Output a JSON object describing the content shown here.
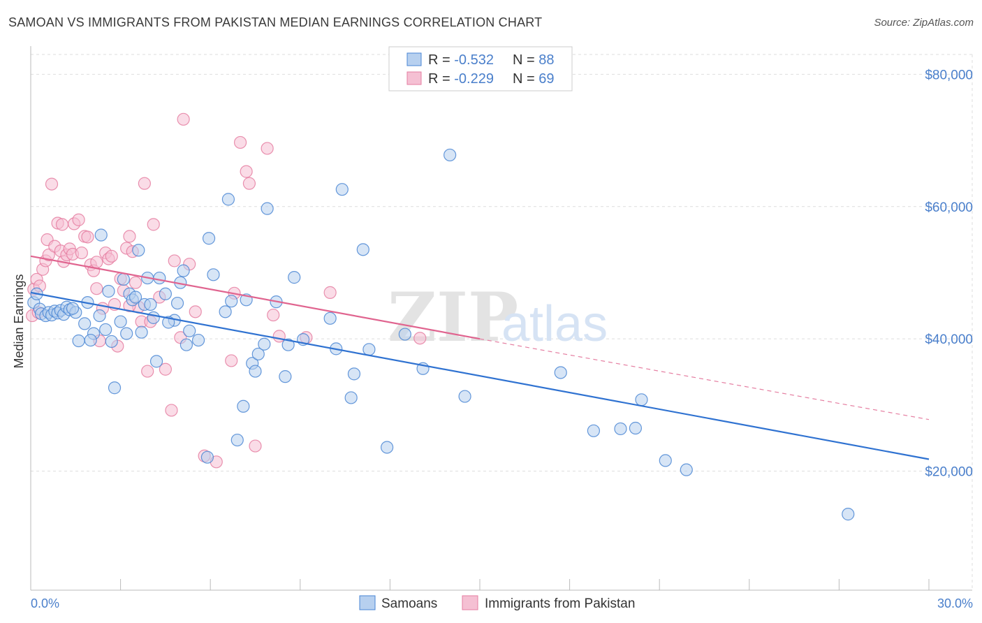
{
  "title": "SAMOAN VS IMMIGRANTS FROM PAKISTAN MEDIAN EARNINGS CORRELATION CHART",
  "source": "Source: ZipAtlas.com",
  "watermark": {
    "zip": "ZIP",
    "atlas": "atlas"
  },
  "colors": {
    "samoans": "#4a86d4",
    "samoans_fill": "#b7d0ef",
    "pakistan": "#e57ea1",
    "pakistan_fill": "#f5c0d3",
    "axis_text": "#4a7fcb",
    "grid": "#dedede"
  },
  "legend_top": [
    {
      "r_label": "R = ",
      "r_value": "-0.532",
      "n_label": "N = ",
      "n_value": "88"
    },
    {
      "r_label": "R = ",
      "r_value": "-0.229",
      "n_label": "N = ",
      "n_value": "69"
    }
  ],
  "chart_data": {
    "type": "scatter",
    "title": "SAMOAN VS IMMIGRANTS FROM PAKISTAN MEDIAN EARNINGS CORRELATION CHART",
    "xlabel": "",
    "ylabel": "Median Earnings",
    "xlim": [
      0,
      30
    ],
    "ylim": [
      2000,
      83000
    ],
    "x_tick_labels": [
      "0.0%",
      "30.0%"
    ],
    "y_ticks": [
      20000,
      40000,
      60000,
      80000
    ],
    "y_tick_labels": [
      "$20,000",
      "$40,000",
      "$60,000",
      "$80,000"
    ],
    "legend": [
      "Samoans",
      "Immigrants from Pakistan"
    ],
    "series": [
      {
        "name": "Samoans",
        "r": -0.532,
        "n": 88,
        "trend": {
          "x0": 0,
          "y0": 47000,
          "x1": 30,
          "y1": 21800
        },
        "points": [
          [
            0.1,
            45500
          ],
          [
            0.2,
            46800
          ],
          [
            0.3,
            44500
          ],
          [
            0.35,
            43800
          ],
          [
            0.5,
            43500
          ],
          [
            0.6,
            44000
          ],
          [
            0.7,
            43600
          ],
          [
            0.8,
            44200
          ],
          [
            0.9,
            43900
          ],
          [
            1.0,
            44300
          ],
          [
            1.1,
            43700
          ],
          [
            1.2,
            44800
          ],
          [
            1.3,
            44400
          ],
          [
            1.5,
            44000
          ],
          [
            1.6,
            39700
          ],
          [
            1.8,
            42300
          ],
          [
            1.9,
            45500
          ],
          [
            2.1,
            40800
          ],
          [
            2.3,
            43500
          ],
          [
            2.35,
            55700
          ],
          [
            2.5,
            41400
          ],
          [
            2.6,
            47200
          ],
          [
            2.7,
            39600
          ],
          [
            2.8,
            32600
          ],
          [
            3.0,
            42600
          ],
          [
            3.1,
            49000
          ],
          [
            3.2,
            40800
          ],
          [
            3.3,
            46800
          ],
          [
            3.4,
            45900
          ],
          [
            3.5,
            46300
          ],
          [
            3.6,
            53400
          ],
          [
            3.7,
            41000
          ],
          [
            3.8,
            45200
          ],
          [
            3.9,
            49200
          ],
          [
            4.0,
            45200
          ],
          [
            4.1,
            43200
          ],
          [
            4.2,
            36600
          ],
          [
            4.3,
            49200
          ],
          [
            4.5,
            46800
          ],
          [
            4.8,
            42800
          ],
          [
            4.9,
            45400
          ],
          [
            5.0,
            48500
          ],
          [
            5.1,
            50300
          ],
          [
            5.2,
            39100
          ],
          [
            5.3,
            41200
          ],
          [
            5.6,
            39800
          ],
          [
            5.9,
            22100
          ],
          [
            5.95,
            55200
          ],
          [
            6.1,
            49700
          ],
          [
            6.5,
            44100
          ],
          [
            6.6,
            61100
          ],
          [
            6.7,
            45700
          ],
          [
            6.9,
            24700
          ],
          [
            7.1,
            29800
          ],
          [
            7.2,
            45900
          ],
          [
            7.4,
            36300
          ],
          [
            7.5,
            35100
          ],
          [
            7.6,
            37700
          ],
          [
            7.8,
            39200
          ],
          [
            7.9,
            59700
          ],
          [
            8.2,
            45600
          ],
          [
            8.5,
            34300
          ],
          [
            8.6,
            39100
          ],
          [
            8.8,
            49300
          ],
          [
            9.1,
            39900
          ],
          [
            10.0,
            43100
          ],
          [
            10.2,
            38500
          ],
          [
            10.4,
            62600
          ],
          [
            10.7,
            31100
          ],
          [
            10.8,
            34700
          ],
          [
            11.1,
            53500
          ],
          [
            11.3,
            38400
          ],
          [
            11.9,
            23600
          ],
          [
            12.5,
            40700
          ],
          [
            13.1,
            35500
          ],
          [
            14.0,
            67800
          ],
          [
            14.5,
            31300
          ],
          [
            17.7,
            34900
          ],
          [
            18.8,
            26100
          ],
          [
            19.7,
            26400
          ],
          [
            20.2,
            26500
          ],
          [
            20.4,
            30800
          ],
          [
            21.2,
            21600
          ],
          [
            21.9,
            20200
          ],
          [
            27.3,
            13500
          ],
          [
            1.4,
            44600
          ],
          [
            2.0,
            39800
          ],
          [
            4.6,
            42500
          ]
        ]
      },
      {
        "name": "Immigrants from Pakistan",
        "r": -0.229,
        "n": 69,
        "trend": {
          "x0": 0,
          "y0": 52500,
          "x1": 15,
          "y1": 40000
        },
        "trend_ext": {
          "x0": 15,
          "y0": 40000,
          "x1": 30,
          "y1": 27800
        },
        "points": [
          [
            0.05,
            43500
          ],
          [
            0.1,
            47500
          ],
          [
            0.2,
            49000
          ],
          [
            0.25,
            44000
          ],
          [
            0.3,
            48000
          ],
          [
            0.4,
            50500
          ],
          [
            0.5,
            51800
          ],
          [
            0.55,
            55000
          ],
          [
            0.6,
            52700
          ],
          [
            0.7,
            63400
          ],
          [
            0.8,
            54000
          ],
          [
            0.9,
            57500
          ],
          [
            1.0,
            53300
          ],
          [
            1.05,
            57300
          ],
          [
            1.1,
            51700
          ],
          [
            1.2,
            52700
          ],
          [
            1.3,
            53600
          ],
          [
            1.4,
            52800
          ],
          [
            1.45,
            57400
          ],
          [
            1.6,
            58000
          ],
          [
            1.7,
            53000
          ],
          [
            1.8,
            55500
          ],
          [
            1.9,
            55400
          ],
          [
            2.0,
            51200
          ],
          [
            2.1,
            50300
          ],
          [
            2.2,
            51600
          ],
          [
            2.3,
            39700
          ],
          [
            2.4,
            44600
          ],
          [
            2.5,
            53000
          ],
          [
            2.6,
            52100
          ],
          [
            2.7,
            52500
          ],
          [
            2.8,
            45200
          ],
          [
            2.9,
            38900
          ],
          [
            3.0,
            49100
          ],
          [
            3.1,
            47300
          ],
          [
            3.2,
            53700
          ],
          [
            3.3,
            55500
          ],
          [
            3.4,
            53200
          ],
          [
            3.5,
            48500
          ],
          [
            3.6,
            44800
          ],
          [
            3.7,
            42600
          ],
          [
            3.8,
            63500
          ],
          [
            3.9,
            35100
          ],
          [
            4.0,
            42600
          ],
          [
            4.1,
            57300
          ],
          [
            4.3,
            46300
          ],
          [
            4.5,
            35400
          ],
          [
            4.7,
            29200
          ],
          [
            4.8,
            51800
          ],
          [
            5.0,
            40200
          ],
          [
            5.1,
            73200
          ],
          [
            5.3,
            51300
          ],
          [
            5.5,
            44100
          ],
          [
            5.8,
            22300
          ],
          [
            6.2,
            21400
          ],
          [
            6.7,
            36700
          ],
          [
            6.8,
            46900
          ],
          [
            7.0,
            69700
          ],
          [
            7.2,
            65300
          ],
          [
            7.3,
            63500
          ],
          [
            7.5,
            23800
          ],
          [
            7.9,
            68800
          ],
          [
            8.1,
            43600
          ],
          [
            8.3,
            40400
          ],
          [
            9.2,
            40200
          ],
          [
            10.0,
            47000
          ],
          [
            13.0,
            40100
          ],
          [
            3.3,
            45000
          ],
          [
            2.2,
            47600
          ]
        ]
      }
    ]
  },
  "plot_area": {
    "note": "rendered by script"
  }
}
